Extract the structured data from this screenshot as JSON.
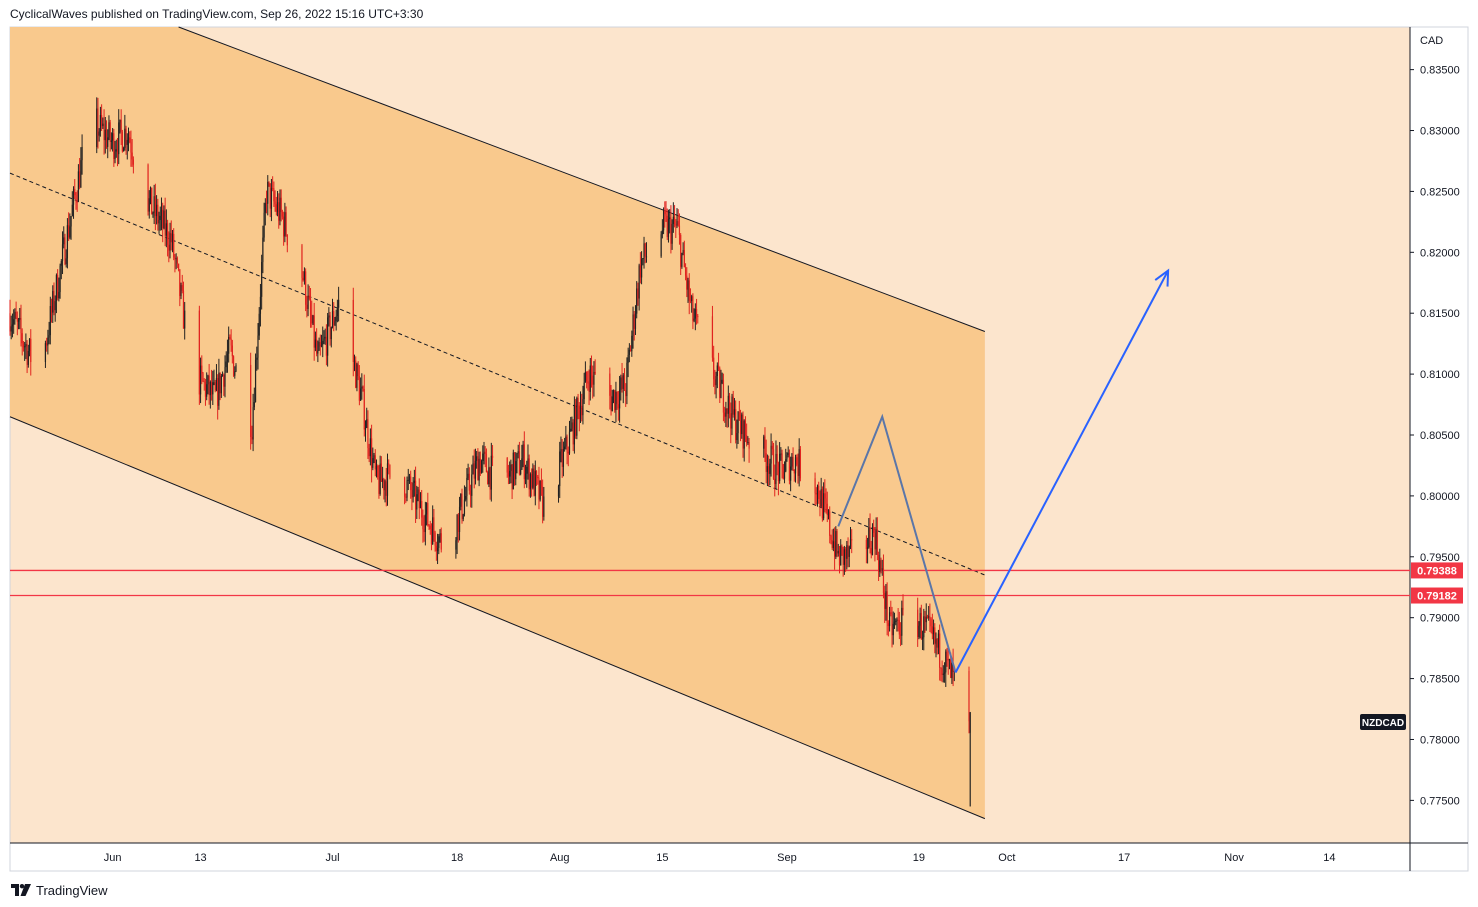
{
  "header": {
    "publisher_line": "CyclicalWaves published on TradingView.com, Sep 26, 2022 15:16 UTC+3:30"
  },
  "footer": {
    "brand": "TradingView",
    "logo_icon": "tradingview-logo-icon"
  },
  "colors": {
    "background": "#fce5cd",
    "channel_fill": "#f9c98d",
    "candle_up": "#222222",
    "candle_down": "#e0231f",
    "level_line": "#f23645",
    "projection_grey": "#5b76a8",
    "projection_blue": "#2962ff",
    "symbol_badge": "#131722"
  },
  "chart_data": {
    "type": "candlestick",
    "symbol": "NZDCAD",
    "currency": "CAD",
    "price_axis": {
      "ylim": [
        0.7715,
        0.8385
      ],
      "ticks": [
        "0.83500",
        "0.83000",
        "0.82500",
        "0.82000",
        "0.81500",
        "0.81000",
        "0.80500",
        "0.80000",
        "0.79500",
        "0.79000",
        "0.78500",
        "0.78000",
        "0.77500"
      ]
    },
    "time_axis": {
      "labels": [
        {
          "label": "Jun",
          "date": "2022-06-01"
        },
        {
          "label": "13",
          "date": "2022-06-13"
        },
        {
          "label": "Jul",
          "date": "2022-07-01"
        },
        {
          "label": "18",
          "date": "2022-07-18"
        },
        {
          "label": "Aug",
          "date": "2022-08-01"
        },
        {
          "label": "15",
          "date": "2022-08-15"
        },
        {
          "label": "Sep",
          "date": "2022-09-01"
        },
        {
          "label": "19",
          "date": "2022-09-19"
        },
        {
          "label": "Oct",
          "date": "2022-10-01"
        },
        {
          "label": "17",
          "date": "2022-10-17"
        },
        {
          "label": "Nov",
          "date": "2022-11-01"
        },
        {
          "label": "14",
          "date": "2022-11-14"
        }
      ]
    },
    "price_path": [
      [
        "2022-05-18",
        0.815
      ],
      [
        "2022-05-22",
        0.81
      ],
      [
        "2022-05-26",
        0.822
      ],
      [
        "2022-05-29",
        0.831
      ],
      [
        "2022-06-01",
        0.829
      ],
      [
        "2022-06-03",
        0.83
      ],
      [
        "2022-06-06",
        0.824
      ],
      [
        "2022-06-09",
        0.821
      ],
      [
        "2022-06-12",
        0.81
      ],
      [
        "2022-06-15",
        0.808
      ],
      [
        "2022-06-17",
        0.812
      ],
      [
        "2022-06-20",
        0.806
      ],
      [
        "2022-06-22",
        0.825
      ],
      [
        "2022-06-24",
        0.823
      ],
      [
        "2022-06-27",
        0.818
      ],
      [
        "2022-06-29",
        0.811
      ],
      [
        "2022-07-02",
        0.816
      ],
      [
        "2022-07-05",
        0.808
      ],
      [
        "2022-07-07",
        0.801
      ],
      [
        "2022-07-10",
        0.802
      ],
      [
        "2022-07-13",
        0.799
      ],
      [
        "2022-07-16",
        0.796
      ],
      [
        "2022-07-18",
        0.798
      ],
      [
        "2022-07-21",
        0.803
      ],
      [
        "2022-07-24",
        0.801
      ],
      [
        "2022-07-27",
        0.803
      ],
      [
        "2022-07-30",
        0.799
      ],
      [
        "2022-08-02",
        0.804
      ],
      [
        "2022-08-05",
        0.81
      ],
      [
        "2022-08-08",
        0.808
      ],
      [
        "2022-08-10",
        0.809
      ],
      [
        "2022-08-12",
        0.819
      ],
      [
        "2022-08-15",
        0.822
      ],
      [
        "2022-08-17",
        0.822
      ],
      [
        "2022-08-19",
        0.815
      ],
      [
        "2022-08-22",
        0.81
      ],
      [
        "2022-08-25",
        0.806
      ],
      [
        "2022-08-28",
        0.804
      ],
      [
        "2022-08-31",
        0.802
      ],
      [
        "2022-09-02",
        0.803
      ],
      [
        "2022-09-05",
        0.801
      ],
      [
        "2022-09-08",
        0.795
      ],
      [
        "2022-09-10",
        0.795
      ],
      [
        "2022-09-13",
        0.797
      ],
      [
        "2022-09-15",
        0.789
      ],
      [
        "2022-09-18",
        0.79
      ],
      [
        "2022-09-20",
        0.789
      ],
      [
        "2022-09-22",
        0.787
      ],
      [
        "2022-09-24",
        0.7845
      ],
      [
        "2022-09-25",
        0.7775
      ],
      [
        "2022-09-26",
        0.781
      ]
    ],
    "last_price_marker": {
      "date": "2022-09-26",
      "low": 0.7745,
      "high": 0.7815
    },
    "horizontal_levels": [
      {
        "price": 0.79388,
        "label": "0.79388"
      },
      {
        "price": 0.79182,
        "label": "0.79182"
      }
    ],
    "channel": {
      "upper": [
        [
          "2022-06-10",
          0.8385
        ],
        [
          "2022-09-28",
          0.8135
        ]
      ],
      "middle": [
        [
          "2022-05-18",
          0.8265
        ],
        [
          "2022-09-28",
          0.7935
        ]
      ],
      "lower": [
        [
          "2022-05-18",
          0.8065
        ],
        [
          "2022-09-28",
          0.7735
        ]
      ],
      "shading_end": "2022-09-28"
    },
    "projection": {
      "grey_path": [
        [
          "2022-09-08",
          0.7975
        ],
        [
          "2022-09-14",
          0.8065
        ],
        [
          "2022-09-24",
          0.7855
        ]
      ],
      "blue_path": [
        [
          "2022-09-24",
          0.7855
        ],
        [
          "2022-10-23",
          0.8185
        ]
      ]
    },
    "symbol_label": "NZDCAD"
  }
}
